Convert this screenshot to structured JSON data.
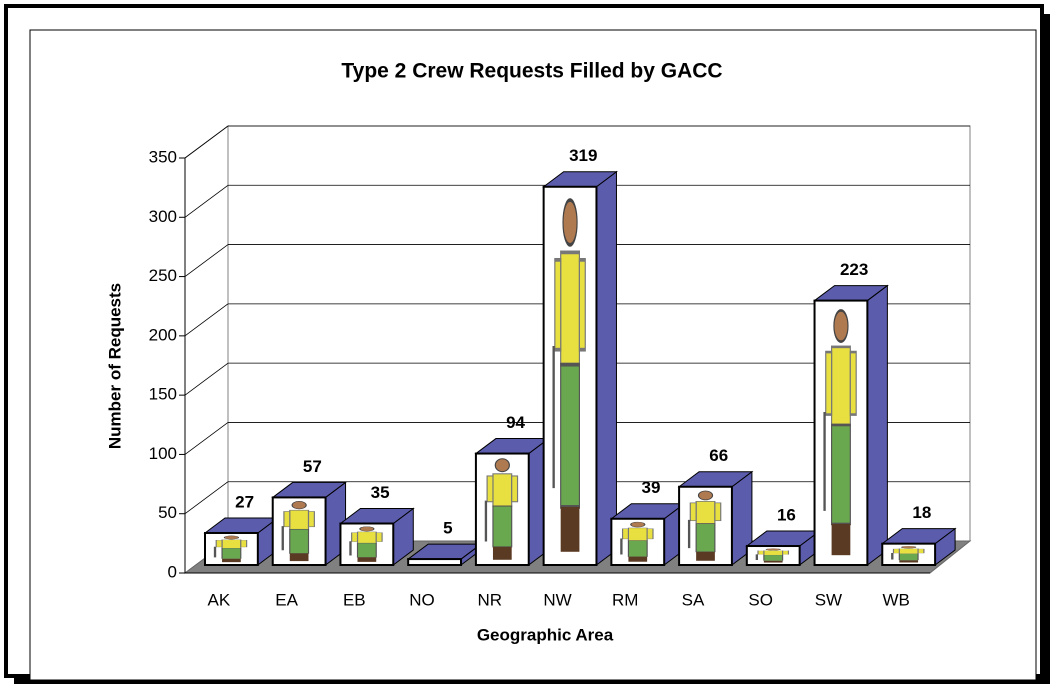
{
  "chart_data": {
    "type": "bar3d",
    "title": "Type 2 Crew Requests Filled by GACC",
    "x_label": "Geographic Area",
    "y_label": "Number of Requests",
    "categories": [
      "AK",
      "EA",
      "EB",
      "NO",
      "NR",
      "NW",
      "RM",
      "SA",
      "SO",
      "SW",
      "WB"
    ],
    "values": [
      27,
      57,
      35,
      5,
      94,
      319,
      39,
      66,
      16,
      223,
      18
    ],
    "color": "#5c5cad",
    "ylim": [
      0,
      350
    ],
    "yticks": [
      0,
      50,
      100,
      150,
      200,
      250,
      300,
      350
    ],
    "grid": true
  }
}
